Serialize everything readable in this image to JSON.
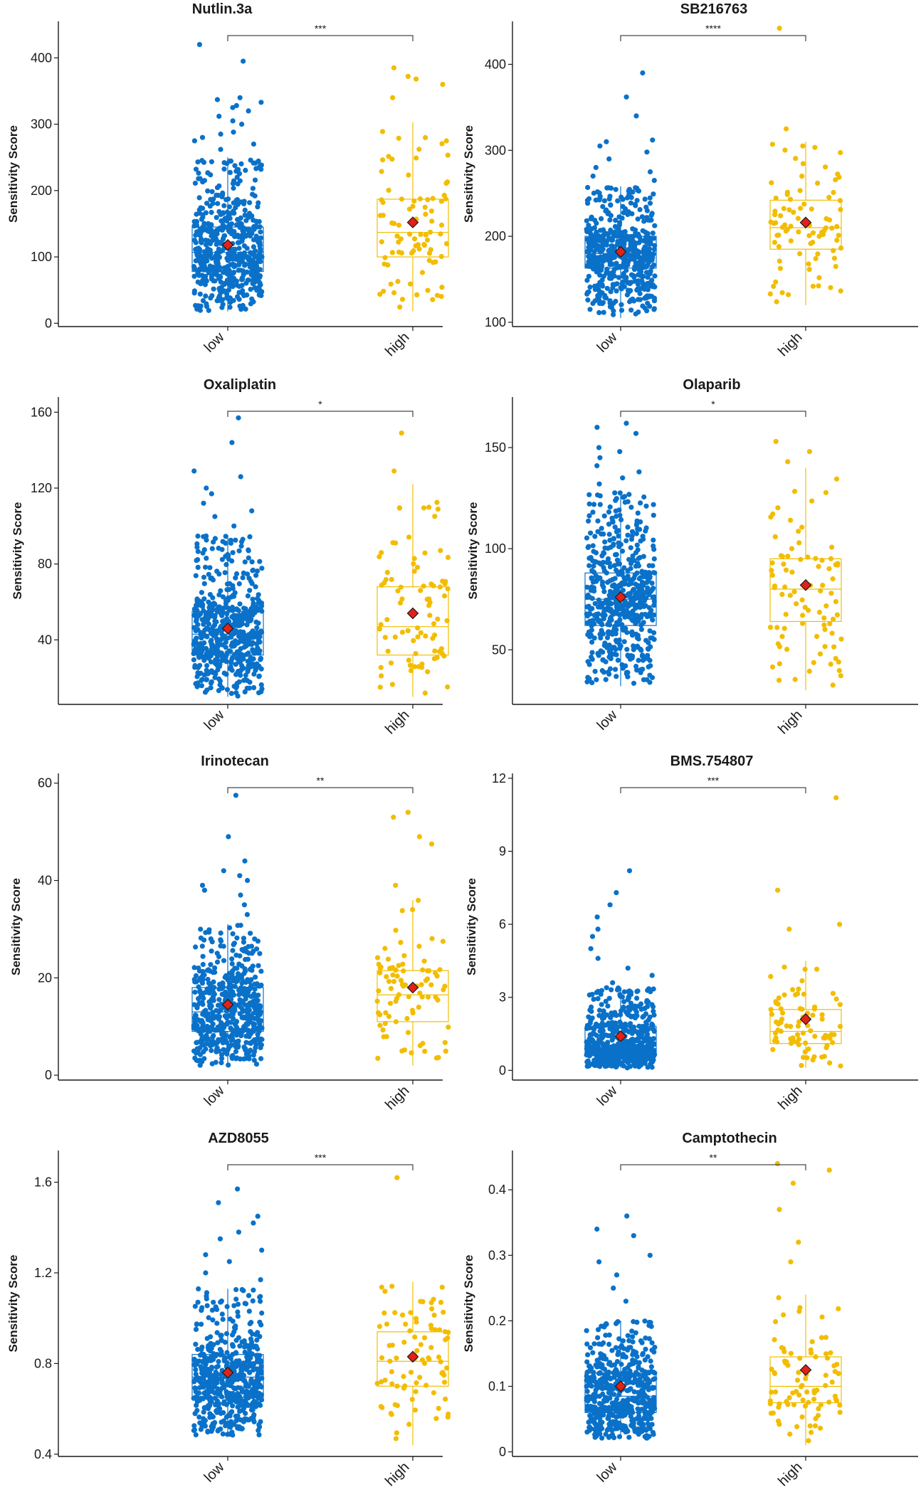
{
  "figure": {
    "y_axis_label": "Sensitivity Score",
    "group_colors": {
      "low": "#0a71c9",
      "high": "#f2bd00"
    },
    "mean_marker_color": "#e32119"
  },
  "chart_data": [
    {
      "type": "scatter",
      "title": "Nutlin.3a",
      "xlabel": "",
      "ylabel": "Sensitivity Score",
      "categories": [
        "low",
        "high"
      ],
      "ylim": [
        -5,
        455
      ],
      "yticks": [
        0,
        100,
        200,
        300,
        400
      ],
      "significance": "***",
      "series": [
        {
          "name": "low",
          "n_points": 560,
          "box": {
            "whisker_low": 18,
            "q1": 78,
            "median": 107,
            "q3": 145,
            "whisker_high": 250
          },
          "mean": 118,
          "outliers": [
            262,
            270,
            275,
            280,
            285,
            288,
            300,
            305,
            312,
            320,
            325,
            328,
            333,
            337,
            340,
            395,
            420
          ]
        },
        {
          "name": "high",
          "n_points": 85,
          "box": {
            "whisker_low": 18,
            "q1": 100,
            "median": 137,
            "q3": 187,
            "whisker_high": 303
          },
          "mean": 152,
          "outliers": [
            340,
            360,
            368,
            372,
            385
          ]
        }
      ]
    },
    {
      "type": "scatter",
      "title": "SB216763",
      "xlabel": "",
      "ylabel": "Sensitivity Score",
      "categories": [
        "low",
        "high"
      ],
      "ylim": [
        95,
        450
      ],
      "yticks": [
        100,
        200,
        300,
        400
      ],
      "significance": "****",
      "series": [
        {
          "name": "low",
          "n_points": 560,
          "box": {
            "whisker_low": 105,
            "q1": 163,
            "median": 180,
            "q3": 200,
            "whisker_high": 258
          },
          "mean": 182,
          "outliers": [
            265,
            270,
            275,
            280,
            290,
            298,
            305,
            310,
            312,
            340,
            362,
            390
          ]
        },
        {
          "name": "high",
          "n_points": 85,
          "box": {
            "whisker_low": 120,
            "q1": 185,
            "median": 210,
            "q3": 242,
            "whisker_high": 310
          },
          "mean": 216,
          "outliers": [
            325,
            442
          ]
        }
      ]
    },
    {
      "type": "scatter",
      "title": "Oxaliplatin",
      "xlabel": "",
      "ylabel": "Sensitivity Score",
      "categories": [
        "low",
        "high"
      ],
      "ylim": [
        6,
        168
      ],
      "yticks": [
        40,
        80,
        120,
        160
      ],
      "significance": "*",
      "series": [
        {
          "name": "low",
          "n_points": 560,
          "box": {
            "whisker_low": 10,
            "q1": 32,
            "median": 43,
            "q3": 55,
            "whisker_high": 95
          },
          "mean": 46,
          "outliers": [
            100,
            105,
            108,
            112,
            117,
            120,
            126,
            129,
            144,
            157
          ]
        },
        {
          "name": "high",
          "n_points": 85,
          "box": {
            "whisker_low": 10,
            "q1": 32,
            "median": 47,
            "q3": 68,
            "whisker_high": 122
          },
          "mean": 54,
          "outliers": [
            129,
            149
          ]
        }
      ]
    },
    {
      "type": "scatter",
      "title": "Olaparib",
      "xlabel": "",
      "ylabel": "Sensitivity Score",
      "categories": [
        "low",
        "high"
      ],
      "ylim": [
        23,
        175
      ],
      "yticks": [
        50,
        100,
        150
      ],
      "significance": "*",
      "series": [
        {
          "name": "low",
          "n_points": 560,
          "box": {
            "whisker_low": 32,
            "q1": 62,
            "median": 75,
            "q3": 88,
            "whisker_high": 128
          },
          "mean": 76,
          "outliers": [
            132,
            135,
            138,
            141,
            145,
            148,
            150,
            157,
            160,
            162
          ]
        },
        {
          "name": "high",
          "n_points": 85,
          "box": {
            "whisker_low": 30,
            "q1": 64,
            "median": 80,
            "q3": 95,
            "whisker_high": 140
          },
          "mean": 82,
          "outliers": [
            143,
            148,
            153
          ]
        }
      ]
    },
    {
      "type": "scatter",
      "title": "Irinotecan",
      "xlabel": "",
      "ylabel": "Sensitivity Score",
      "categories": [
        "low",
        "high"
      ],
      "ylim": [
        -1,
        62
      ],
      "yticks": [
        0,
        20,
        40,
        60
      ],
      "significance": "**",
      "series": [
        {
          "name": "low",
          "n_points": 560,
          "box": {
            "whisker_low": 2,
            "q1": 9,
            "median": 13,
            "q3": 18,
            "whisker_high": 31
          },
          "mean": 14.5,
          "outliers": [
            33,
            35,
            37,
            38,
            39,
            40,
            41,
            42,
            44,
            49,
            57.5
          ]
        },
        {
          "name": "high",
          "n_points": 85,
          "box": {
            "whisker_low": 2,
            "q1": 11,
            "median": 16.5,
            "q3": 21.5,
            "whisker_high": 36
          },
          "mean": 18,
          "outliers": [
            39,
            47.5,
            49,
            53,
            54
          ]
        }
      ]
    },
    {
      "type": "scatter",
      "title": "BMS.754807",
      "xlabel": "",
      "ylabel": "Sensitivity Score",
      "categories": [
        "low",
        "high"
      ],
      "ylim": [
        -0.4,
        12.2
      ],
      "yticks": [
        0,
        3,
        6,
        9,
        12
      ],
      "significance": "***",
      "series": [
        {
          "name": "low",
          "n_points": 560,
          "box": {
            "whisker_low": 0.1,
            "q1": 0.6,
            "median": 1.0,
            "q3": 1.8,
            "whisker_high": 3.4
          },
          "mean": 1.4,
          "outliers": [
            3.6,
            3.9,
            4.2,
            4.6,
            5.0,
            5.5,
            5.8,
            6.3,
            6.8,
            7.3,
            8.2
          ]
        },
        {
          "name": "high",
          "n_points": 85,
          "box": {
            "whisker_low": 0.1,
            "q1": 1.1,
            "median": 1.6,
            "q3": 2.5,
            "whisker_high": 4.5
          },
          "mean": 2.1,
          "outliers": [
            5.8,
            6.0,
            7.4,
            11.2
          ]
        }
      ]
    },
    {
      "type": "scatter",
      "title": "AZD8055",
      "xlabel": "",
      "ylabel": "Sensitivity Score",
      "categories": [
        "low",
        "high"
      ],
      "ylim": [
        0.39,
        1.74
      ],
      "yticks": [
        0.4,
        0.8,
        1.2,
        1.6
      ],
      "significance": "***",
      "series": [
        {
          "name": "low",
          "n_points": 560,
          "box": {
            "whisker_low": 0.48,
            "q1": 0.65,
            "median": 0.74,
            "q3": 0.84,
            "whisker_high": 1.13
          },
          "mean": 0.76,
          "outliers": [
            1.17,
            1.2,
            1.25,
            1.28,
            1.3,
            1.35,
            1.38,
            1.42,
            1.45,
            1.51,
            1.57
          ]
        },
        {
          "name": "high",
          "n_points": 85,
          "box": {
            "whisker_low": 0.44,
            "q1": 0.7,
            "median": 0.81,
            "q3": 0.94,
            "whisker_high": 1.16
          },
          "mean": 0.83,
          "outliers": [
            1.62
          ]
        }
      ]
    },
    {
      "type": "scatter",
      "title": "Camptothecin",
      "xlabel": "",
      "ylabel": "Sensitivity Score",
      "categories": [
        "low",
        "high"
      ],
      "ylim": [
        -0.007,
        0.46
      ],
      "yticks": [
        0.0,
        0.1,
        0.2,
        0.3,
        0.4
      ],
      "significance": "**",
      "series": [
        {
          "name": "low",
          "n_points": 560,
          "box": {
            "whisker_low": 0.02,
            "q1": 0.06,
            "median": 0.085,
            "q3": 0.12,
            "whisker_high": 0.2
          },
          "mean": 0.1,
          "outliers": [
            0.23,
            0.25,
            0.27,
            0.29,
            0.3,
            0.33,
            0.34,
            0.36
          ]
        },
        {
          "name": "high",
          "n_points": 85,
          "box": {
            "whisker_low": 0.01,
            "q1": 0.075,
            "median": 0.1,
            "q3": 0.145,
            "whisker_high": 0.24
          },
          "mean": 0.125,
          "outliers": [
            0.29,
            0.32,
            0.37,
            0.41,
            0.43,
            0.44
          ]
        }
      ]
    }
  ]
}
